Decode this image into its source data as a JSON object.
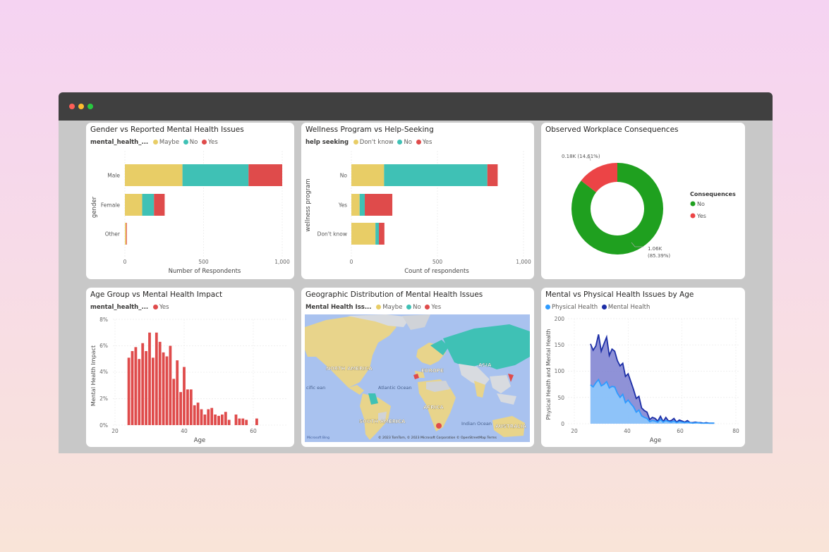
{
  "colors": {
    "maybe": "#E8CD66",
    "no": "#3FC1B5",
    "yes": "#DF4B4B",
    "dontknow": "#E8CD66",
    "donut_no": "#1FA01F",
    "donut_yes": "#EC4446",
    "physical": "#2E9BFF",
    "mental": "#1C2EA6"
  },
  "cards": {
    "gender": {
      "title": "Gender vs Reported Mental Health Issues",
      "legend_field": "mental_health_...",
      "legend": [
        "Maybe",
        "No",
        "Yes"
      ],
      "ylabel": "gender",
      "xlabel": "Number of Respondents",
      "ticks": [
        "0",
        "500",
        "1,000"
      ]
    },
    "wellness": {
      "title": "Wellness Program vs Help-Seeking",
      "legend_field": "help seeking",
      "legend": [
        "Don't know",
        "No",
        "Yes"
      ],
      "ylabel": "wellness program",
      "xlabel": "Count of respondents",
      "ticks": [
        "0",
        "500",
        "1,000"
      ]
    },
    "consequences": {
      "title": "Observed Workplace Consequences",
      "legend_title": "Consequences",
      "legend": [
        "No",
        "Yes"
      ],
      "label_yes": "0.18K (14.61%)",
      "label_no_1": "1.06K",
      "label_no_2": "(85.39%)"
    },
    "age": {
      "title": "Age Group vs Mental Health Impact",
      "legend_field": "mental_health_...",
      "legend": [
        "Yes"
      ],
      "ylabel": "Mental Health Impact",
      "xlabel": "Age",
      "yticks": [
        "8%",
        "6%",
        "4%",
        "2%",
        "0%"
      ],
      "xticks": [
        "20",
        "40",
        "60"
      ]
    },
    "geo": {
      "title": "Geographic Distribution of Mental Health Issues",
      "legend_field": "Mental Health Iss...",
      "legend": [
        "Maybe",
        "No",
        "Yes"
      ],
      "labels": {
        "north_america": "NORTH AMERICA",
        "europe": "EUROPE",
        "asia": "ASIA",
        "africa": "AFRICA",
        "south_america": "SOUTH AMERICA",
        "australia": "AUSTRALIA",
        "atlantic": "Atlantic Ocean",
        "pacific": "cific ean",
        "indian": "Indian Ocean"
      },
      "attribution": "© 2023 TomTom, © 2023 Microsoft Corporation  © OpenStreetMap  Terms",
      "brand": "Microsoft Bing"
    },
    "physical": {
      "title": "Mental vs Physical Health Issues by Age",
      "legend": [
        "Physical Health",
        "Mental Health"
      ],
      "ylabel": "Physical Health and Mental Health",
      "xlabel": "Age",
      "yticks": [
        "200",
        "150",
        "100",
        "50",
        "0"
      ],
      "xticks": [
        "20",
        "40",
        "60",
        "80"
      ]
    }
  },
  "chart_data": [
    {
      "type": "bar",
      "orientation": "horizontal",
      "stacked": true,
      "title": "Gender vs Reported Mental Health Issues",
      "categories": [
        "Male",
        "Female",
        "Other"
      ],
      "series": [
        {
          "name": "Maybe",
          "values": [
            366,
            110,
            8
          ]
        },
        {
          "name": "No",
          "values": [
            420,
            75,
            0
          ]
        },
        {
          "name": "Yes",
          "values": [
            214,
            68,
            4
          ]
        }
      ],
      "xlabel": "Number of Respondents",
      "ylabel": "gender",
      "xlim": [
        0,
        1000
      ]
    },
    {
      "type": "bar",
      "orientation": "horizontal",
      "stacked": true,
      "title": "Wellness Program vs Help-Seeking",
      "categories": [
        "No",
        "Yes",
        "Don't know"
      ],
      "series": [
        {
          "name": "Don't know",
          "values": [
            190,
            48,
            140
          ]
        },
        {
          "name": "No",
          "values": [
            600,
            30,
            20
          ]
        },
        {
          "name": "Yes",
          "values": [
            60,
            160,
            32
          ]
        }
      ],
      "xlabel": "Count of respondents",
      "ylabel": "wellness program",
      "xlim": [
        0,
        1000
      ]
    },
    {
      "type": "pie",
      "donut": true,
      "title": "Observed Workplace Consequences",
      "labels": [
        "No",
        "Yes"
      ],
      "values": [
        1060,
        180
      ]
    },
    {
      "type": "bar",
      "title": "Age Group vs Mental Health Impact",
      "x": [
        24,
        25,
        26,
        27,
        28,
        29,
        30,
        31,
        32,
        33,
        34,
        35,
        36,
        37,
        38,
        39,
        40,
        41,
        42,
        43,
        44,
        45,
        46,
        47,
        48,
        49,
        50,
        51,
        52,
        53,
        55,
        56,
        57,
        58,
        61
      ],
      "values": [
        5.1,
        5.6,
        5.9,
        5.0,
        6.2,
        5.6,
        7.0,
        5.1,
        7.0,
        6.3,
        5.5,
        5.2,
        6.0,
        3.5,
        4.9,
        2.5,
        4.4,
        2.7,
        2.7,
        1.5,
        1.7,
        1.2,
        0.8,
        1.2,
        1.3,
        0.8,
        0.7,
        0.8,
        1.0,
        0.4,
        0.8,
        0.5,
        0.5,
        0.4,
        0.5
      ],
      "xlabel": "Age",
      "ylabel": "Mental Health Impact",
      "ylim": [
        0,
        8
      ],
      "xlim": [
        20,
        70
      ]
    },
    {
      "type": "area",
      "title": "Mental vs Physical Health Issues by Age",
      "x": [
        26,
        27,
        28,
        29,
        30,
        31,
        32,
        33,
        34,
        35,
        36,
        37,
        38,
        39,
        40,
        41,
        42,
        43,
        44,
        45,
        46,
        47,
        48,
        49,
        50,
        51,
        52,
        53,
        54,
        55,
        56,
        57,
        58,
        59,
        60,
        61,
        62,
        63,
        64,
        65,
        66,
        67,
        68,
        69,
        70,
        71,
        72
      ],
      "series": [
        {
          "name": "Physical Health",
          "values": [
            74,
            70,
            78,
            84,
            72,
            75,
            80,
            68,
            71,
            70,
            58,
            50,
            56,
            40,
            45,
            38,
            32,
            22,
            26,
            15,
            12,
            10,
            4,
            6,
            5,
            3,
            8,
            3,
            6,
            4,
            3,
            5,
            2,
            4,
            3,
            2,
            3,
            2,
            1,
            2,
            2,
            1,
            1,
            1,
            1,
            1,
            1
          ]
        },
        {
          "name": "Mental Health",
          "values": [
            152,
            140,
            148,
            170,
            138,
            152,
            165,
            130,
            142,
            138,
            120,
            110,
            115,
            90,
            95,
            80,
            65,
            48,
            52,
            30,
            25,
            22,
            8,
            12,
            10,
            5,
            14,
            4,
            12,
            5,
            6,
            10,
            3,
            7,
            5,
            3,
            6,
            2,
            2,
            3,
            2,
            2,
            1,
            2,
            1,
            1,
            1
          ]
        }
      ],
      "xlabel": "Age",
      "ylabel": "Physical Health and Mental Health",
      "ylim": [
        0,
        200
      ],
      "xlim": [
        15,
        80
      ]
    }
  ]
}
